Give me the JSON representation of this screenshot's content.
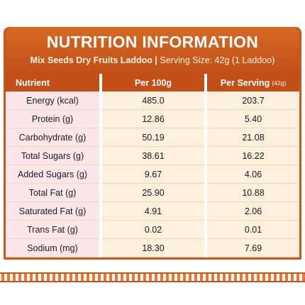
{
  "header": {
    "title": "NUTRITION INFORMATION",
    "product": "Mix Seeds Dry Fruits Laddoo |",
    "serving_size": "Serving Size: 42g (1 Laddoo)"
  },
  "table": {
    "columns": [
      {
        "label": "Nutrient"
      },
      {
        "label": "Per 100g"
      },
      {
        "label": "Per Serving",
        "note": "(42g)"
      }
    ],
    "rows": [
      [
        "Energy (kcal)",
        "485.0",
        "203.7"
      ],
      [
        "Protein (g)",
        "12.86",
        "5.40"
      ],
      [
        "Carbohydrate (g)",
        "50.19",
        "21.08"
      ],
      [
        "Total Sugars (g)",
        "38.61",
        "16.22"
      ],
      [
        "Added Sugars (g)",
        "9.67",
        "4.06"
      ],
      [
        "Total Fat (g)",
        "25.90",
        "10.88"
      ],
      [
        "Saturated Fat (g)",
        "4.91",
        "2.06"
      ],
      [
        "Trans Fat (g)",
        "0.02",
        "0.01"
      ],
      [
        "Sodium (mg)",
        "18.30",
        "7.69"
      ]
    ]
  }
}
